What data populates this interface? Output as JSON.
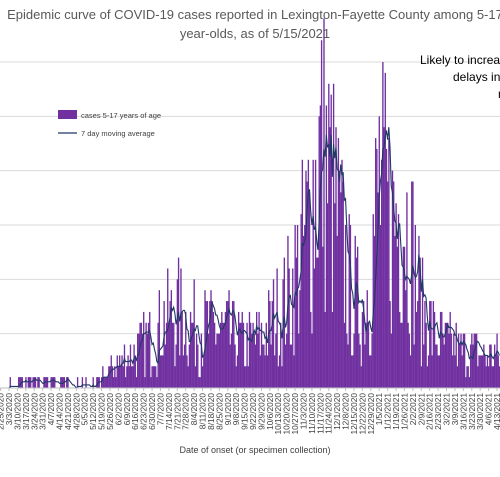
{
  "chart_data": {
    "type": "bar",
    "title_lines": [
      "Epidemic curve of COVID-19 cases reported in Lexington-Fayette County among 5-17",
      "year-olds, as of 5/15/2021"
    ],
    "annotation_lines": [
      "Likely to increase",
      "delays in tes",
      "re"
    ],
    "xlabel": "Date of onset (or specimen collection)",
    "ylabel": "",
    "legend": {
      "placement": "top-left",
      "bar_label": "cases 5-17 years of age",
      "line_label": "7 day moving average"
    },
    "colors": {
      "bar": "#7030a0",
      "line": "#1f3864",
      "grid": "#d9d9d9",
      "text": "#404040"
    },
    "grid": "horizontal",
    "ylim": [
      0,
      30
    ],
    "start_date": "2020-02-25",
    "end_date": "2021-04-15",
    "xtick_labels": [
      "2/25/2020",
      "3/3/2020",
      "3/10/2020",
      "3/17/2020",
      "3/24/2020",
      "3/31/2020",
      "4/7/2020",
      "4/14/2020",
      "4/21/2020",
      "4/28/2020",
      "5/5/2020",
      "5/12/2020",
      "5/19/2020",
      "5/26/2020",
      "6/2/2020",
      "6/9/2020",
      "6/16/2020",
      "6/23/2020",
      "6/30/2020",
      "7/7/2020",
      "7/14/2020",
      "7/21/2020",
      "7/28/2020",
      "8/4/2020",
      "8/11/2020",
      "8/18/2020",
      "8/25/2020",
      "9/1/2020",
      "9/8/2020",
      "9/15/2020",
      "9/22/2020",
      "9/29/2020",
      "10/6/2020",
      "10/13/2020",
      "10/20/2020",
      "10/27/2020",
      "11/3/2020",
      "11/10/2020",
      "11/17/2020",
      "11/24/2020",
      "12/1/2020",
      "12/8/2020",
      "12/15/2020",
      "12/22/2020",
      "12/29/2020",
      "1/5/2021",
      "1/12/2021",
      "1/19/2021",
      "1/26/2021",
      "2/2/2021",
      "2/9/2021",
      "2/16/2021",
      "2/23/2021",
      "3/2/2021",
      "3/9/2021",
      "3/16/2021",
      "3/23/2021",
      "3/30/2021",
      "4/6/2021",
      "4/13/2021"
    ],
    "anchors": [
      [
        "2020-02-25",
        0
      ],
      [
        "2020-03-07",
        0.3
      ],
      [
        "2020-03-20",
        0.5
      ],
      [
        "2020-04-15",
        0.4
      ],
      [
        "2020-05-10",
        0.3
      ],
      [
        "2020-05-20",
        1
      ],
      [
        "2020-05-31",
        2
      ],
      [
        "2020-06-10",
        3
      ],
      [
        "2020-06-25",
        4
      ],
      [
        "2020-07-08",
        6
      ],
      [
        "2020-07-20",
        7
      ],
      [
        "2020-08-01",
        6
      ],
      [
        "2020-08-15",
        5.5
      ],
      [
        "2020-09-01",
        5
      ],
      [
        "2020-09-15",
        4
      ],
      [
        "2020-10-01",
        5
      ],
      [
        "2020-10-15",
        7
      ],
      [
        "2020-10-25",
        9
      ],
      [
        "2020-11-05",
        14
      ],
      [
        "2020-11-18",
        22
      ],
      [
        "2020-11-25",
        19
      ],
      [
        "2020-12-05",
        13
      ],
      [
        "2020-12-12",
        9
      ],
      [
        "2020-12-22",
        7
      ],
      [
        "2020-12-29",
        11
      ],
      [
        "2021-01-05",
        19
      ],
      [
        "2021-01-15",
        15
      ],
      [
        "2021-01-25",
        17
      ],
      [
        "2021-02-02",
        12
      ],
      [
        "2021-02-10",
        7
      ],
      [
        "2021-02-20",
        5
      ],
      [
        "2021-03-01",
        4
      ],
      [
        "2021-03-15",
        3.5
      ],
      [
        "2021-04-01",
        3
      ],
      [
        "2021-04-15",
        3
      ]
    ]
  }
}
